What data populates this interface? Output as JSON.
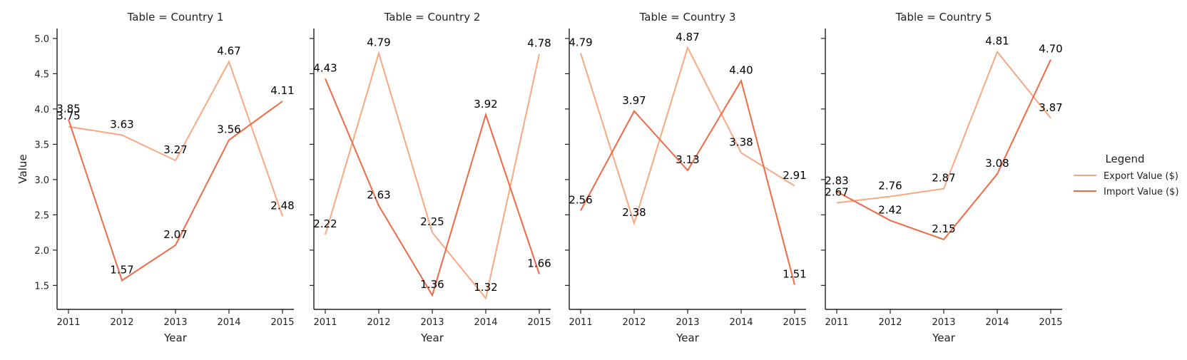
{
  "chart_data": {
    "type": "line",
    "legend": {
      "title": "Legend",
      "placement": "right",
      "entries": [
        "Export Value ($)",
        "Import Value ($)"
      ]
    },
    "colors": {
      "Export Value ($)": "#F7A882",
      "Import Value ($)": "#EE6A45"
    },
    "xlabel": "Year",
    "ylabel": "Value",
    "x": [
      "2011",
      "2012",
      "2013",
      "2014",
      "2015"
    ],
    "ylim": [
      1.15,
      5.1
    ],
    "yticks": [
      "1.5",
      "2.0",
      "2.5",
      "3.0",
      "3.5",
      "4.0",
      "4.5",
      "5.0"
    ],
    "ytick_values": [
      1.5,
      2.0,
      2.5,
      3.0,
      3.5,
      4.0,
      4.5,
      5.0
    ],
    "grid": false,
    "facets": [
      {
        "title": "Table = Country 1",
        "series": [
          {
            "name": "Export Value ($)",
            "values": [
              3.75,
              3.63,
              3.27,
              4.67,
              2.48
            ]
          },
          {
            "name": "Import Value ($)",
            "values": [
              3.85,
              1.57,
              2.07,
              3.56,
              4.11
            ]
          }
        ]
      },
      {
        "title": "Table = Country 2",
        "series": [
          {
            "name": "Export Value ($)",
            "values": [
              2.22,
              4.79,
              2.25,
              1.32,
              4.78
            ]
          },
          {
            "name": "Import Value ($)",
            "values": [
              4.43,
              2.63,
              1.36,
              3.92,
              1.66
            ]
          }
        ]
      },
      {
        "title": "Table = Country 3",
        "series": [
          {
            "name": "Export Value ($)",
            "values": [
              4.79,
              2.38,
              4.87,
              3.38,
              2.91
            ]
          },
          {
            "name": "Import Value ($)",
            "values": [
              2.56,
              3.97,
              3.13,
              4.4,
              1.51
            ]
          }
        ]
      },
      {
        "title": "Table = Country 5",
        "series": [
          {
            "name": "Export Value ($)",
            "values": [
              2.67,
              2.76,
              2.87,
              4.81,
              3.87
            ]
          },
          {
            "name": "Import Value ($)",
            "values": [
              2.83,
              2.42,
              2.15,
              3.08,
              4.7
            ]
          }
        ]
      }
    ]
  }
}
